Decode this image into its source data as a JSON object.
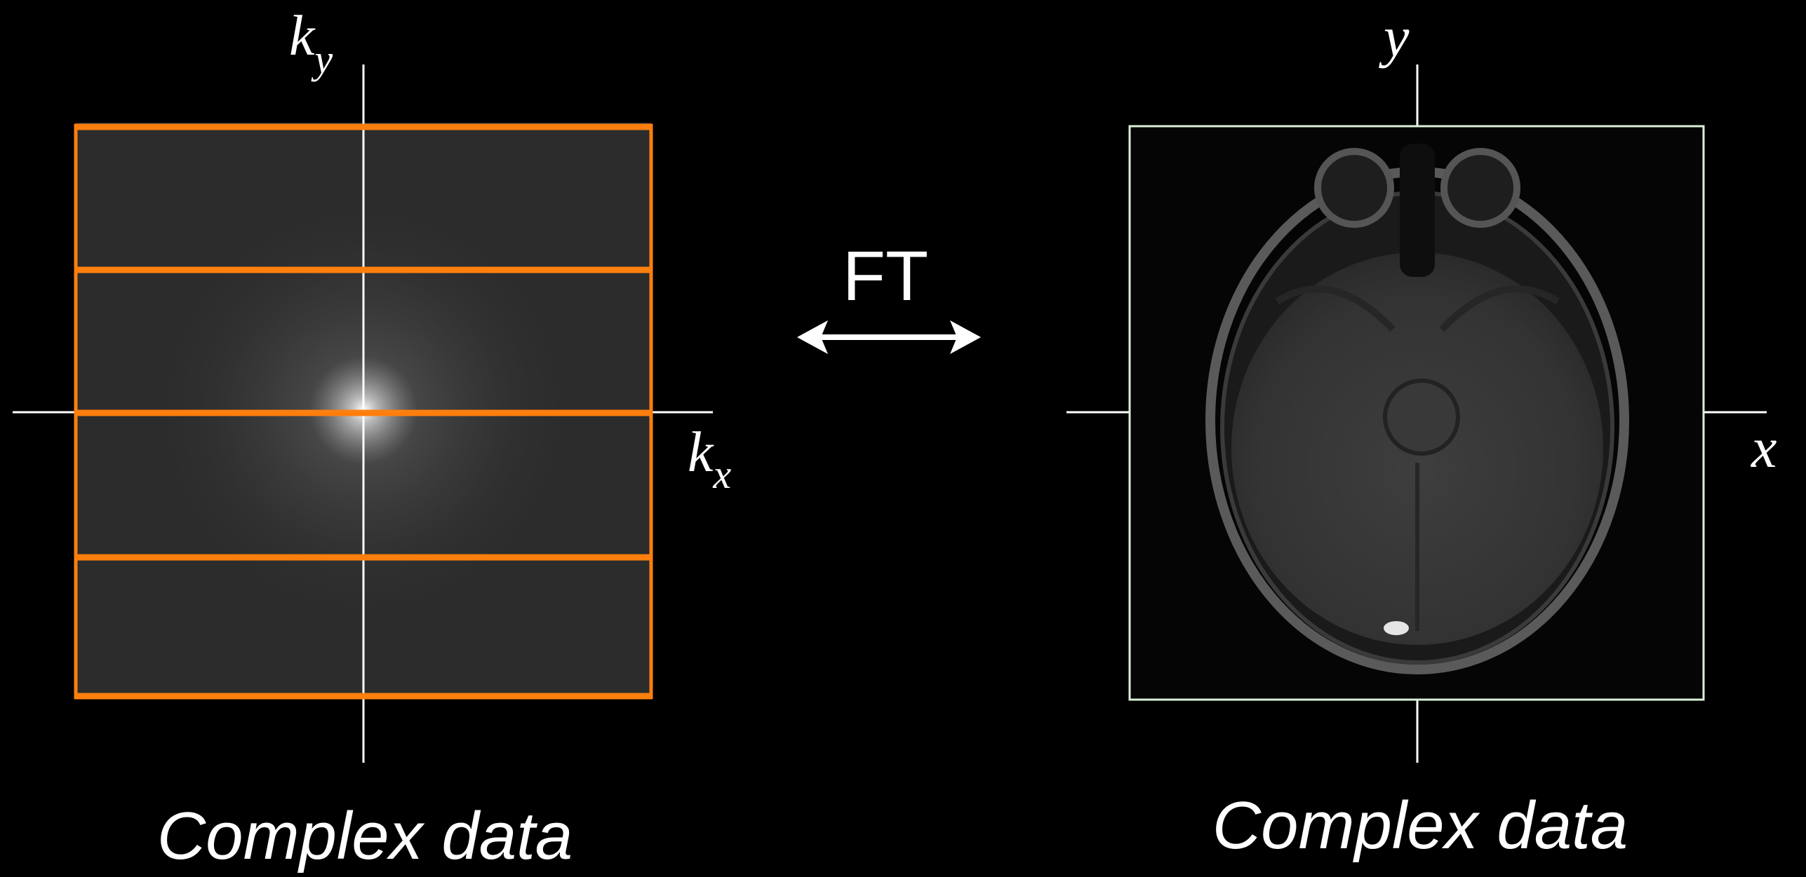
{
  "left_panel": {
    "vertical_axis_label": {
      "base": "k",
      "sub": "y"
    },
    "horizontal_axis_label": {
      "base": "k",
      "sub": "x"
    },
    "caption": "Complex data",
    "segment_line_color": "#ff7f0e",
    "segment_line_count": 5
  },
  "transform": {
    "label": "FT",
    "arrow": "double-headed-arrow-icon"
  },
  "right_panel": {
    "vertical_axis_label": "y",
    "horizontal_axis_label": "x",
    "caption": "Complex data",
    "frame_color": "#d8f0d8"
  },
  "colors": {
    "background": "#000000",
    "axis": "#ffffff",
    "kspace_fill": "#2c2c2c",
    "image_fill": "#050505"
  }
}
